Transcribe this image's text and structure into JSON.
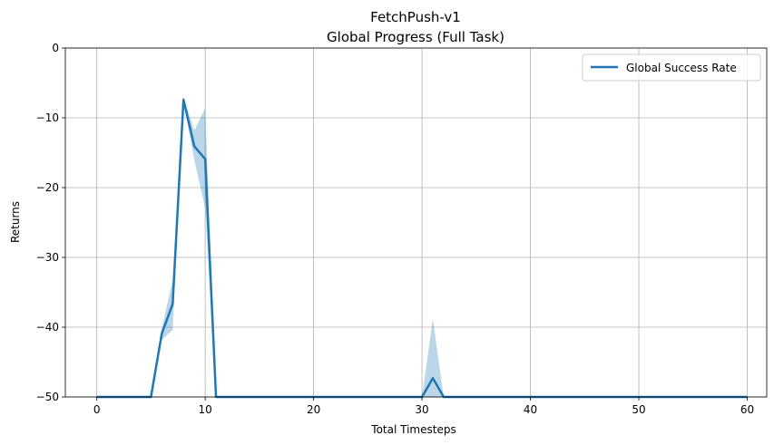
{
  "chart_data": {
    "type": "line",
    "title": "FetchPush-v1",
    "subtitle": "Global Progress (Full Task)",
    "xlabel": "Total Timesteps",
    "ylabel": "Returns",
    "xlim": [
      -2.9,
      61.8
    ],
    "ylim": [
      -50,
      0
    ],
    "xticks": [
      0,
      10,
      20,
      30,
      40,
      50,
      60
    ],
    "yticks": [
      0,
      -10,
      -20,
      -30,
      -40,
      -50
    ],
    "xtick_labels": [
      "0",
      "10",
      "20",
      "30",
      "40",
      "50",
      "60"
    ],
    "ytick_labels": [
      "0",
      "−10",
      "−20",
      "−30",
      "−40",
      "−50"
    ],
    "grid": true,
    "legend_position": "top-right",
    "series": [
      {
        "name": "Global Success Rate",
        "color": "#1f77b4",
        "x": [
          0,
          1,
          2,
          3,
          4,
          5,
          6,
          7,
          8,
          9,
          10,
          11,
          12,
          13,
          14,
          15,
          16,
          17,
          18,
          19,
          20,
          21,
          22,
          23,
          24,
          25,
          26,
          27,
          28,
          29,
          30,
          31,
          32,
          33,
          34,
          35,
          36,
          37,
          38,
          39,
          40,
          41,
          42,
          43,
          44,
          45,
          46,
          47,
          48,
          49,
          50,
          51,
          52,
          53,
          54,
          55,
          56,
          57,
          58,
          59,
          60
        ],
        "values": [
          -50,
          -50,
          -50,
          -50,
          -50,
          -50,
          -40.9,
          -36.7,
          -7.4,
          -14.1,
          -15.9,
          -50,
          -50,
          -50,
          -50,
          -50,
          -50,
          -50,
          -50,
          -50,
          -50,
          -50,
          -50,
          -50,
          -50,
          -50,
          -50,
          -50,
          -50,
          -50,
          -50,
          -47.3,
          -50,
          -50,
          -50,
          -50,
          -50,
          -50,
          -50,
          -50,
          -50,
          -50,
          -50,
          -50,
          -50,
          -50,
          -50,
          -50,
          -50,
          -50,
          -50,
          -50,
          -50,
          -50,
          -50,
          -50,
          -50,
          -50,
          -50,
          -50,
          -50
        ],
        "band_x": [
          0,
          5,
          6,
          7,
          8,
          9,
          10,
          11,
          30,
          31,
          32,
          60
        ],
        "band_upper": [
          -50,
          -50,
          -40.2,
          -33.2,
          -7.0,
          -11.8,
          -8.6,
          -50,
          -50,
          -38.8,
          -50,
          -50
        ],
        "band_lower": [
          -50,
          -50,
          -41.8,
          -40.4,
          -7.8,
          -16.1,
          -22.9,
          -50,
          -50,
          -50,
          -50,
          -50
        ]
      }
    ]
  }
}
